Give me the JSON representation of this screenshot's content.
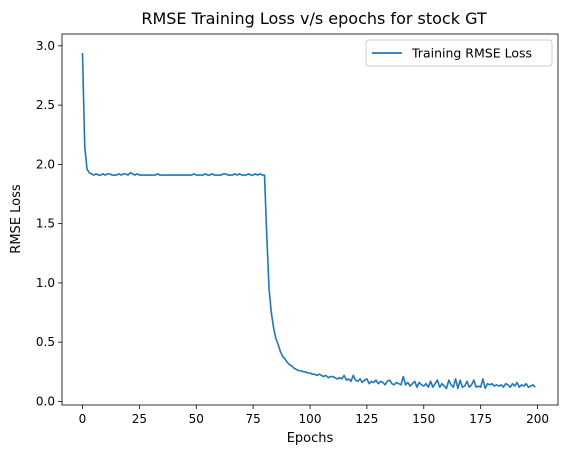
{
  "chart_data": {
    "type": "line",
    "title": "RMSE Training Loss v/s epochs for stock GT",
    "xlabel": "Epochs",
    "ylabel": "RMSE Loss",
    "xlim": [
      -9,
      209
    ],
    "ylim": [
      -0.03,
      3.1
    ],
    "xticks": [
      0,
      25,
      50,
      75,
      100,
      125,
      150,
      175,
      200
    ],
    "xtick_labels": [
      "0",
      "25",
      "50",
      "75",
      "100",
      "125",
      "150",
      "175",
      "200"
    ],
    "yticks": [
      0.0,
      0.5,
      1.0,
      1.5,
      2.0,
      2.5,
      3.0
    ],
    "ytick_labels": [
      "0.0",
      "0.5",
      "1.0",
      "1.5",
      "2.0",
      "2.5",
      "3.0"
    ],
    "grid": false,
    "legend_position": "top-right",
    "series": [
      {
        "name": "Training RMSE Loss",
        "color": "#1f77b4",
        "x": [
          0,
          1,
          2,
          3,
          4,
          5,
          6,
          7,
          8,
          9,
          10,
          11,
          12,
          13,
          14,
          15,
          16,
          17,
          18,
          19,
          20,
          21,
          22,
          23,
          24,
          25,
          26,
          27,
          28,
          29,
          30,
          31,
          32,
          33,
          34,
          35,
          36,
          37,
          38,
          39,
          40,
          41,
          42,
          43,
          44,
          45,
          46,
          47,
          48,
          49,
          50,
          51,
          52,
          53,
          54,
          55,
          56,
          57,
          58,
          59,
          60,
          61,
          62,
          63,
          64,
          65,
          66,
          67,
          68,
          69,
          70,
          71,
          72,
          73,
          74,
          75,
          76,
          77,
          78,
          79,
          80,
          81,
          82,
          83,
          84,
          85,
          86,
          87,
          88,
          89,
          90,
          91,
          92,
          93,
          94,
          95,
          96,
          97,
          98,
          99,
          100,
          101,
          102,
          103,
          104,
          105,
          106,
          107,
          108,
          109,
          110,
          111,
          112,
          113,
          114,
          115,
          116,
          117,
          118,
          119,
          120,
          121,
          122,
          123,
          124,
          125,
          126,
          127,
          128,
          129,
          130,
          131,
          132,
          133,
          134,
          135,
          136,
          137,
          138,
          139,
          140,
          141,
          142,
          143,
          144,
          145,
          146,
          147,
          148,
          149,
          150,
          151,
          152,
          153,
          154,
          155,
          156,
          157,
          158,
          159,
          160,
          161,
          162,
          163,
          164,
          165,
          166,
          167,
          168,
          169,
          170,
          171,
          172,
          173,
          174,
          175,
          176,
          177,
          178,
          179,
          180,
          181,
          182,
          183,
          184,
          185,
          186,
          187,
          188,
          189,
          190,
          191,
          192,
          193,
          194,
          195,
          196,
          197,
          198,
          199
        ],
        "y": [
          2.94,
          2.15,
          1.96,
          1.93,
          1.92,
          1.91,
          1.92,
          1.91,
          1.91,
          1.92,
          1.91,
          1.92,
          1.92,
          1.91,
          1.91,
          1.91,
          1.92,
          1.91,
          1.92,
          1.92,
          1.91,
          1.93,
          1.92,
          1.91,
          1.92,
          1.91,
          1.91,
          1.91,
          1.91,
          1.91,
          1.91,
          1.91,
          1.91,
          1.92,
          1.91,
          1.91,
          1.91,
          1.91,
          1.91,
          1.91,
          1.91,
          1.91,
          1.91,
          1.91,
          1.91,
          1.91,
          1.91,
          1.91,
          1.91,
          1.92,
          1.91,
          1.91,
          1.91,
          1.91,
          1.92,
          1.91,
          1.91,
          1.92,
          1.91,
          1.91,
          1.91,
          1.91,
          1.92,
          1.92,
          1.91,
          1.91,
          1.91,
          1.92,
          1.91,
          1.92,
          1.91,
          1.91,
          1.91,
          1.92,
          1.91,
          1.91,
          1.92,
          1.91,
          1.92,
          1.91,
          1.91,
          1.4,
          0.95,
          0.75,
          0.62,
          0.53,
          0.48,
          0.42,
          0.38,
          0.36,
          0.33,
          0.31,
          0.3,
          0.28,
          0.27,
          0.26,
          0.26,
          0.25,
          0.25,
          0.24,
          0.24,
          0.23,
          0.23,
          0.22,
          0.23,
          0.22,
          0.21,
          0.22,
          0.2,
          0.21,
          0.21,
          0.2,
          0.19,
          0.2,
          0.19,
          0.22,
          0.18,
          0.19,
          0.17,
          0.22,
          0.18,
          0.17,
          0.19,
          0.16,
          0.18,
          0.19,
          0.15,
          0.17,
          0.16,
          0.18,
          0.15,
          0.17,
          0.16,
          0.14,
          0.17,
          0.18,
          0.15,
          0.14,
          0.16,
          0.15,
          0.14,
          0.21,
          0.14,
          0.16,
          0.13,
          0.15,
          0.17,
          0.12,
          0.16,
          0.14,
          0.13,
          0.15,
          0.12,
          0.17,
          0.12,
          0.15,
          0.18,
          0.12,
          0.15,
          0.13,
          0.11,
          0.18,
          0.14,
          0.12,
          0.19,
          0.11,
          0.18,
          0.12,
          0.13,
          0.17,
          0.12,
          0.14,
          0.18,
          0.12,
          0.13,
          0.12,
          0.19,
          0.11,
          0.15,
          0.14,
          0.15,
          0.13,
          0.14,
          0.13,
          0.14,
          0.12,
          0.15,
          0.14,
          0.12,
          0.15,
          0.13,
          0.16,
          0.12,
          0.14,
          0.13,
          0.15,
          0.12,
          0.13,
          0.14,
          0.12
        ]
      }
    ]
  }
}
